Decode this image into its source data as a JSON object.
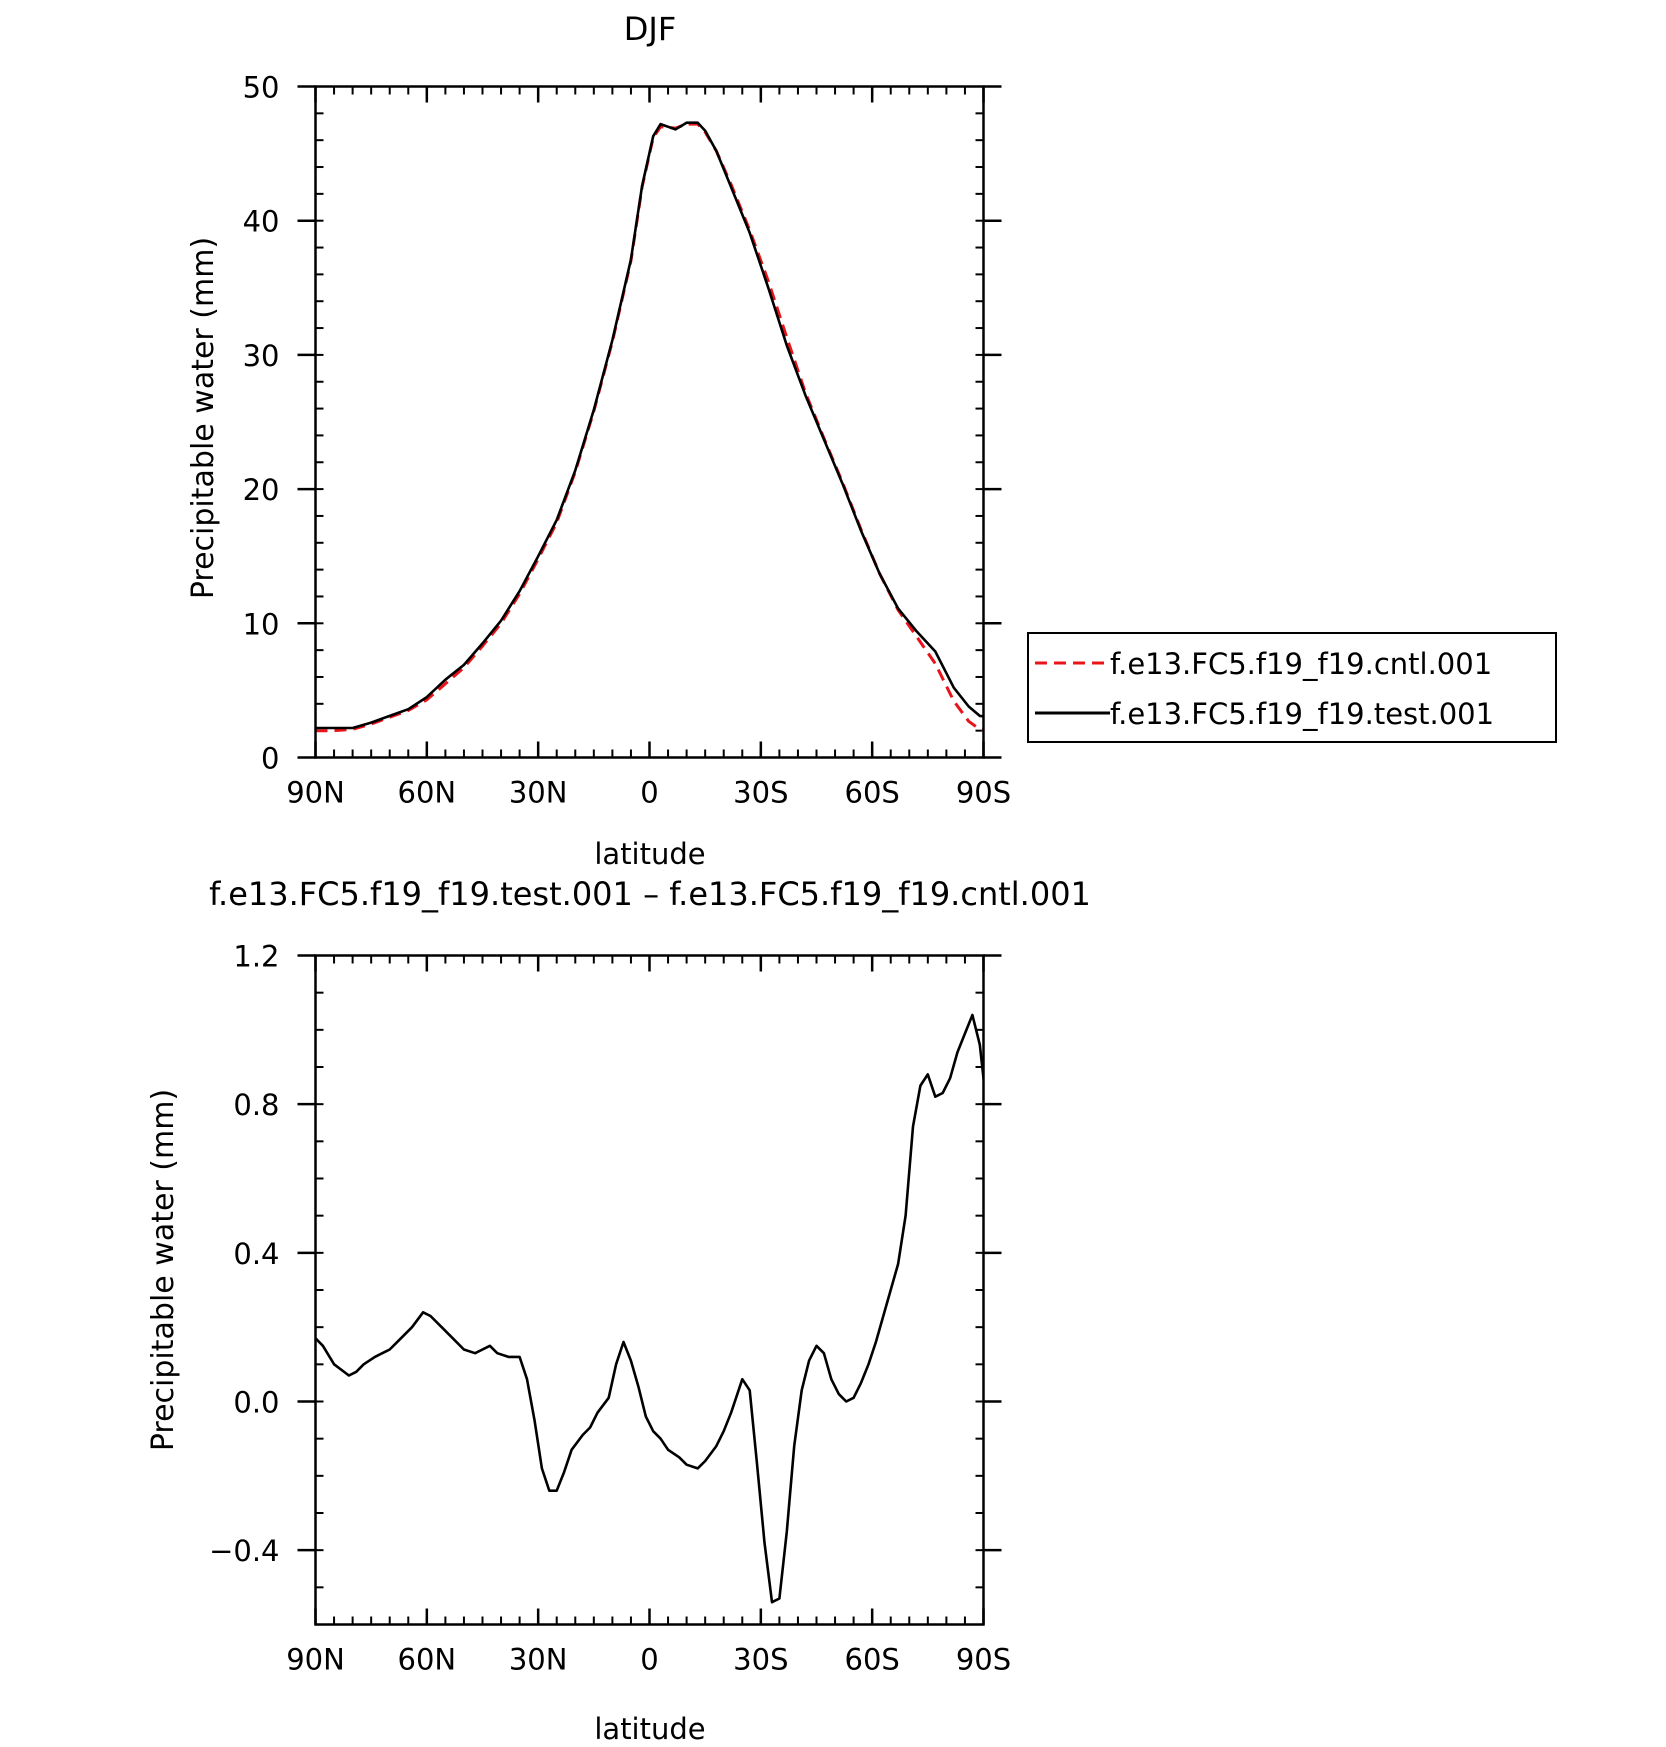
{
  "chart_data": [
    {
      "type": "line",
      "title": "DJF",
      "xlabel": "latitude",
      "ylabel": "Precipitable water (mm)",
      "xlim": [
        90,
        -90
      ],
      "ylim": [
        0,
        50
      ],
      "xticks": [
        {
          "v": 90,
          "label": "90N"
        },
        {
          "v": 60,
          "label": "60N"
        },
        {
          "v": 30,
          "label": "30N"
        },
        {
          "v": 0,
          "label": "0"
        },
        {
          "v": -30,
          "label": "30S"
        },
        {
          "v": -60,
          "label": "60S"
        },
        {
          "v": -90,
          "label": "90S"
        }
      ],
      "yticks": [
        {
          "v": 0,
          "label": "0"
        },
        {
          "v": 10,
          "label": "10"
        },
        {
          "v": 20,
          "label": "20"
        },
        {
          "v": 30,
          "label": "30"
        },
        {
          "v": 40,
          "label": "40"
        },
        {
          "v": 50,
          "label": "50"
        }
      ],
      "legend": {
        "position": "right",
        "entries": [
          "f.e13.FC5.f19_f19.cntl.001",
          "f.e13.FC5.f19_f19.test.001"
        ]
      },
      "series": [
        {
          "name": "f.e13.FC5.f19_f19.cntl.001",
          "color": "#e8141a",
          "dash": "dashed",
          "points": [
            [
              90,
              2.0
            ],
            [
              85,
              2.0
            ],
            [
              80,
              2.1
            ],
            [
              75,
              2.5
            ],
            [
              70,
              3.0
            ],
            [
              65,
              3.5
            ],
            [
              60,
              4.3
            ],
            [
              55,
              5.5
            ],
            [
              50,
              6.7
            ],
            [
              45,
              8.3
            ],
            [
              40,
              10.0
            ],
            [
              35,
              12.2
            ],
            [
              30,
              14.8
            ],
            [
              25,
              17.5
            ],
            [
              20,
              21.3
            ],
            [
              15,
              25.8
            ],
            [
              10,
              31.0
            ],
            [
              5,
              37.0
            ],
            [
              2,
              42.5
            ],
            [
              -1,
              46.2
            ],
            [
              -3,
              47.0
            ],
            [
              -7,
              46.9
            ],
            [
              -10,
              47.2
            ],
            [
              -13,
              47.2
            ],
            [
              -15,
              46.6
            ],
            [
              -18,
              45.2
            ],
            [
              -22,
              42.7
            ],
            [
              -27,
              39.3
            ],
            [
              -32,
              35.5
            ],
            [
              -37,
              31.3
            ],
            [
              -42,
              27.2
            ],
            [
              -47,
              23.8
            ],
            [
              -52,
              20.5
            ],
            [
              -57,
              17.0
            ],
            [
              -62,
              13.7
            ],
            [
              -67,
              11.0
            ],
            [
              -72,
              9.0
            ],
            [
              -77,
              7.0
            ],
            [
              -82,
              4.2
            ],
            [
              -86,
              2.7
            ],
            [
              -89,
              2.1
            ],
            [
              -92,
              1.9
            ],
            [
              -95,
              1.4
            ],
            [
              -98,
              0.9
            ],
            [
              -101,
              0.6
            ]
          ]
        },
        {
          "name": "f.e13.FC5.f19_f19.test.001",
          "color": "#000000",
          "dash": "solid",
          "points": [
            [
              90,
              2.2
            ],
            [
              85,
              2.2
            ],
            [
              80,
              2.2
            ],
            [
              75,
              2.6
            ],
            [
              70,
              3.1
            ],
            [
              65,
              3.6
            ],
            [
              60,
              4.5
            ],
            [
              55,
              5.8
            ],
            [
              50,
              6.9
            ],
            [
              45,
              8.5
            ],
            [
              40,
              10.2
            ],
            [
              35,
              12.4
            ],
            [
              30,
              15.0
            ],
            [
              25,
              17.7
            ],
            [
              20,
              21.4
            ],
            [
              15,
              25.9
            ],
            [
              10,
              31.1
            ],
            [
              5,
              37.1
            ],
            [
              2,
              42.6
            ],
            [
              -1,
              46.3
            ],
            [
              -3,
              47.2
            ],
            [
              -7,
              46.8
            ],
            [
              -10,
              47.3
            ],
            [
              -13,
              47.3
            ],
            [
              -15,
              46.7
            ],
            [
              -18,
              45.2
            ],
            [
              -22,
              42.5
            ],
            [
              -27,
              39.1
            ],
            [
              -32,
              35.0
            ],
            [
              -37,
              30.7
            ],
            [
              -42,
              27.0
            ],
            [
              -47,
              23.7
            ],
            [
              -52,
              20.4
            ],
            [
              -57,
              16.9
            ],
            [
              -62,
              13.7
            ],
            [
              -67,
              11.1
            ],
            [
              -72,
              9.4
            ],
            [
              -77,
              7.9
            ],
            [
              -82,
              5.2
            ],
            [
              -86,
              3.8
            ],
            [
              -89,
              3.1
            ],
            [
              -92,
              3.0
            ],
            [
              -95,
              2.9
            ],
            [
              -98,
              1.9
            ],
            [
              -101,
              1.3
            ]
          ]
        }
      ]
    },
    {
      "type": "line",
      "title": "f.e13.FC5.f19_f19.test.001 – f.e13.FC5.f19_f19.cntl.001",
      "xlabel": "latitude",
      "ylabel": "Precipitable water (mm)",
      "xlim": [
        90,
        -90
      ],
      "ylim": [
        -0.6,
        1.2
      ],
      "xticks": [
        {
          "v": 90,
          "label": "90N"
        },
        {
          "v": 60,
          "label": "60N"
        },
        {
          "v": 30,
          "label": "30N"
        },
        {
          "v": 0,
          "label": "0"
        },
        {
          "v": -30,
          "label": "30S"
        },
        {
          "v": -60,
          "label": "60S"
        },
        {
          "v": -90,
          "label": "90S"
        }
      ],
      "yticks": [
        {
          "v": -0.4,
          "label": "−0.4"
        },
        {
          "v": 0.0,
          "label": "0.0"
        },
        {
          "v": 0.4,
          "label": "0.4"
        },
        {
          "v": 0.8,
          "label": "0.8"
        },
        {
          "v": 1.2,
          "label": "1.2"
        }
      ],
      "series": [
        {
          "color": "#000000",
          "dash": "solid",
          "points": [
            [
              90,
              0.17
            ],
            [
              88,
              0.15
            ],
            [
              85,
              0.1
            ],
            [
              81,
              0.07
            ],
            [
              79,
              0.08
            ],
            [
              77,
              0.1
            ],
            [
              74,
              0.12
            ],
            [
              72,
              0.13
            ],
            [
              70,
              0.14
            ],
            [
              67,
              0.17
            ],
            [
              64,
              0.2
            ],
            [
              61,
              0.24
            ],
            [
              59,
              0.23
            ],
            [
              56,
              0.2
            ],
            [
              53,
              0.17
            ],
            [
              50,
              0.14
            ],
            [
              47,
              0.13
            ],
            [
              45,
              0.14
            ],
            [
              43,
              0.15
            ],
            [
              41,
              0.13
            ],
            [
              38,
              0.12
            ],
            [
              35,
              0.12
            ],
            [
              33,
              0.06
            ],
            [
              31,
              -0.05
            ],
            [
              29,
              -0.18
            ],
            [
              27,
              -0.24
            ],
            [
              25,
              -0.24
            ],
            [
              23,
              -0.19
            ],
            [
              21,
              -0.13
            ],
            [
              18,
              -0.09
            ],
            [
              16,
              -0.07
            ],
            [
              14,
              -0.03
            ],
            [
              11,
              0.01
            ],
            [
              9,
              0.1
            ],
            [
              7,
              0.16
            ],
            [
              5,
              0.11
            ],
            [
              3,
              0.04
            ],
            [
              1,
              -0.04
            ],
            [
              -1,
              -0.08
            ],
            [
              -3,
              -0.1
            ],
            [
              -5,
              -0.13
            ],
            [
              -8,
              -0.15
            ],
            [
              -10,
              -0.17
            ],
            [
              -13,
              -0.18
            ],
            [
              -15,
              -0.16
            ],
            [
              -18,
              -0.12
            ],
            [
              -20,
              -0.08
            ],
            [
              -22,
              -0.03
            ],
            [
              -25,
              0.06
            ],
            [
              -27,
              0.03
            ],
            [
              -29,
              -0.17
            ],
            [
              -31,
              -0.38
            ],
            [
              -33,
              -0.54
            ],
            [
              -35,
              -0.53
            ],
            [
              -37,
              -0.35
            ],
            [
              -39,
              -0.12
            ],
            [
              -41,
              0.03
            ],
            [
              -43,
              0.11
            ],
            [
              -45,
              0.15
            ],
            [
              -47,
              0.13
            ],
            [
              -49,
              0.06
            ],
            [
              -51,
              0.02
            ],
            [
              -53,
              0.0
            ],
            [
              -55,
              0.01
            ],
            [
              -57,
              0.05
            ],
            [
              -59,
              0.1
            ],
            [
              -61,
              0.16
            ],
            [
              -63,
              0.23
            ],
            [
              -65,
              0.3
            ],
            [
              -67,
              0.37
            ],
            [
              -69,
              0.5
            ],
            [
              -71,
              0.74
            ],
            [
              -73,
              0.85
            ],
            [
              -75,
              0.88
            ],
            [
              -77,
              0.82
            ],
            [
              -79,
              0.83
            ],
            [
              -81,
              0.87
            ],
            [
              -83,
              0.94
            ],
            [
              -85,
              0.99
            ],
            [
              -87,
              1.04
            ],
            [
              -89,
              0.96
            ],
            [
              -91,
              0.78
            ],
            [
              -93,
              0.65
            ],
            [
              -95,
              0.6
            ]
          ]
        }
      ]
    }
  ]
}
